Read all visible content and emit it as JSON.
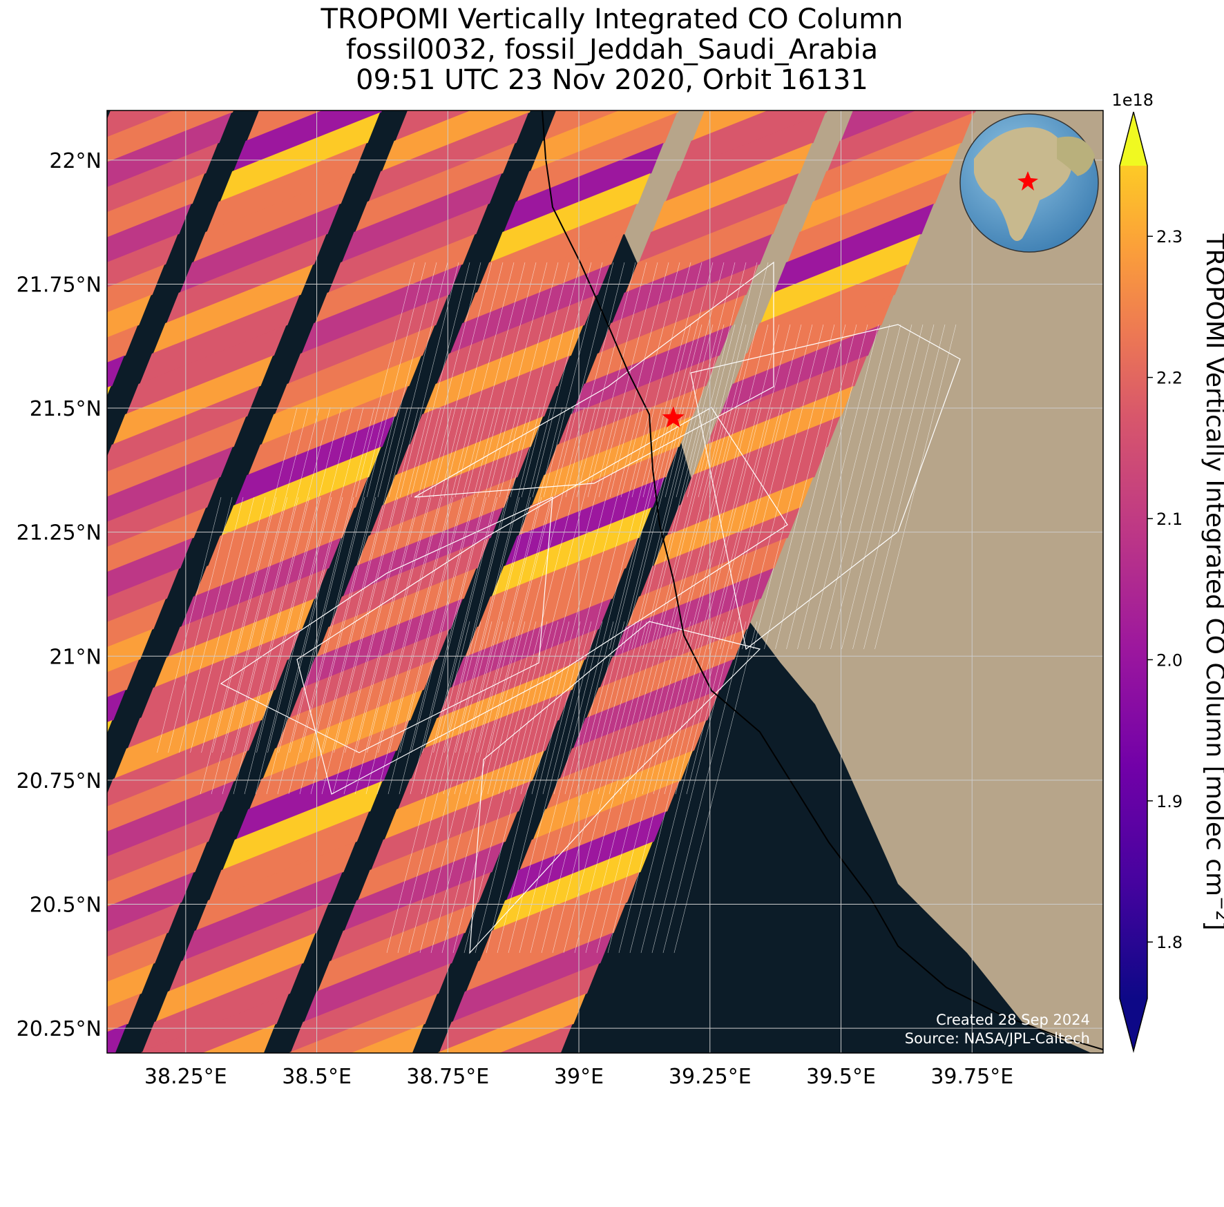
{
  "title": {
    "line1": "TROPOMI Vertically Integrated CO Column",
    "line2": "fossil0032, fossil_Jeddah_Saudi_Arabia",
    "line3": "09:51 UTC 23 Nov 2020, Orbit 16131"
  },
  "map": {
    "lon_range": [
      38.1,
      40.0
    ],
    "lat_range": [
      20.2,
      22.1
    ],
    "lon_ticks": [
      38.25,
      38.5,
      38.75,
      39.0,
      39.25,
      39.5,
      39.75
    ],
    "lon_tick_labels": [
      "38.25°E",
      "38.5°E",
      "38.75°E",
      "39°E",
      "39.25°E",
      "39.5°E",
      "39.75°E"
    ],
    "lat_ticks": [
      22.0,
      21.75,
      21.5,
      21.25,
      21.0,
      20.75,
      20.5,
      20.25
    ],
    "lat_tick_labels": [
      "22°N",
      "21.75°N",
      "21.5°N",
      "21.25°N",
      "21°N",
      "20.75°N",
      "20.5°N",
      "20.25°N"
    ],
    "grid": true,
    "site_marker": {
      "lon": 39.18,
      "lat": 21.48,
      "color": "#ff0000",
      "shape": "star"
    },
    "credit_line1": "Created 28 Sep 2024",
    "credit_line2": "Source: NASA/JPL-Caltech",
    "inset": "globe-locator"
  },
  "colorbar": {
    "colormap": "plasma",
    "min": 1.76e+18,
    "max": 2.35e+18,
    "ticks": [
      1.8,
      1.9,
      2.0,
      2.1,
      2.2,
      2.3
    ],
    "tick_labels": [
      "1.8",
      "1.9",
      "2.0",
      "2.1",
      "2.2",
      "2.3"
    ],
    "exponent_label": "1e18",
    "label": "TROPOMI Vertically Integrated CO Column [molec cm",
    "label_sup": "−2",
    "label_end": "]",
    "extend": "both"
  },
  "colors": {
    "ocean": "#0c1c28",
    "land": "#b7a58a",
    "grid": "#cccccc",
    "mesh": "#ffffff"
  }
}
